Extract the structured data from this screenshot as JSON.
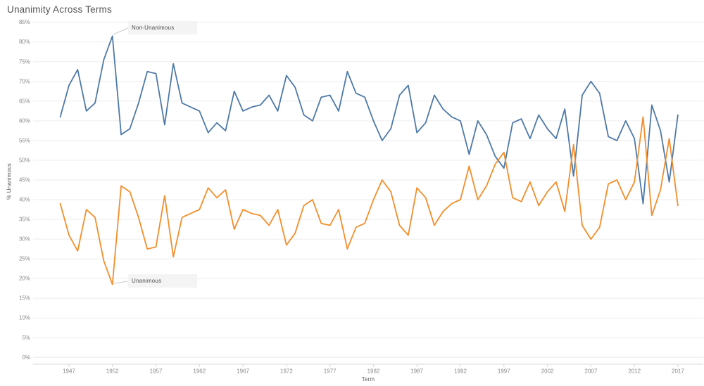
{
  "title": "Unanimity Across Terms",
  "y_axis": {
    "label": "% Unanimous",
    "ticks": [
      "0%",
      "5%",
      "10%",
      "15%",
      "20%",
      "25%",
      "30%",
      "35%",
      "40%",
      "45%",
      "50%",
      "55%",
      "60%",
      "65%",
      "70%",
      "75%",
      "80%",
      "85%"
    ],
    "tick_values": [
      0,
      5,
      10,
      15,
      20,
      25,
      30,
      35,
      40,
      45,
      50,
      55,
      60,
      65,
      70,
      75,
      80,
      85
    ]
  },
  "x_axis": {
    "label": "Term",
    "ticks": [
      "1947",
      "1952",
      "1957",
      "1962",
      "1967",
      "1972",
      "1977",
      "1982",
      "1987",
      "1992",
      "1997",
      "2002",
      "2007",
      "2012",
      "2017"
    ]
  },
  "annotations": [
    {
      "label": "Non-Unanimous",
      "series": "Non-Unanimous",
      "year": 1952,
      "value": 81.5
    },
    {
      "label": "Unanimous",
      "series": "Unanimous",
      "year": 1952,
      "value": 18.5
    }
  ],
  "chart_data": {
    "type": "line",
    "title": "Unanimity Across Terms",
    "xlabel": "Term",
    "ylabel": "% Unanimous",
    "ylim": [
      0,
      85
    ],
    "grid": true,
    "legend": "direct-labels (annotations on chart)",
    "x": [
      1946,
      1947,
      1948,
      1949,
      1950,
      1951,
      1952,
      1953,
      1954,
      1955,
      1956,
      1957,
      1958,
      1959,
      1960,
      1961,
      1962,
      1963,
      1964,
      1965,
      1966,
      1967,
      1968,
      1969,
      1970,
      1971,
      1972,
      1973,
      1974,
      1975,
      1976,
      1977,
      1978,
      1979,
      1980,
      1981,
      1982,
      1983,
      1984,
      1985,
      1986,
      1987,
      1988,
      1989,
      1990,
      1991,
      1992,
      1993,
      1994,
      1995,
      1996,
      1997,
      1998,
      1999,
      2000,
      2001,
      2002,
      2003,
      2004,
      2005,
      2006,
      2007,
      2008,
      2009,
      2010,
      2011,
      2012,
      2013,
      2014,
      2015,
      2016,
      2017
    ],
    "series": [
      {
        "name": "Non-Unanimous",
        "color": "#4e79a7",
        "values": [
          61,
          69,
          73,
          62.5,
          64.5,
          75.5,
          81.5,
          56.5,
          58,
          64.5,
          72.5,
          72,
          59,
          74.5,
          64.5,
          63.5,
          62.5,
          57,
          59.5,
          57.5,
          67.5,
          62.5,
          63.5,
          64,
          66.5,
          62.5,
          71.5,
          68.5,
          61.5,
          60,
          66,
          66.5,
          62.5,
          72.5,
          67,
          66,
          60,
          55,
          58,
          66.5,
          69,
          57,
          59.5,
          66.5,
          63,
          61,
          60,
          51.5,
          60,
          56.5,
          51,
          48,
          59.5,
          60.5,
          55.5,
          61.5,
          58,
          55.5,
          63,
          46,
          66.5,
          70,
          67,
          56,
          55,
          60,
          55.5,
          39,
          64,
          57.5,
          44.5,
          61.5
        ]
      },
      {
        "name": "Unanimous",
        "color": "#f28e2b",
        "values": [
          39,
          31,
          27,
          37.5,
          35.5,
          24.5,
          18.5,
          43.5,
          42,
          35.5,
          27.5,
          28,
          41,
          25.5,
          35.5,
          36.5,
          37.5,
          43,
          40.5,
          42.5,
          32.5,
          37.5,
          36.5,
          36,
          33.5,
          37.5,
          28.5,
          31.5,
          38.5,
          40,
          34,
          33.5,
          37.5,
          27.5,
          33,
          34,
          40,
          45,
          42,
          33.5,
          31,
          43,
          40.5,
          33.5,
          37,
          39,
          40,
          48.5,
          40,
          43.5,
          49,
          52,
          40.5,
          39.5,
          44.5,
          38.5,
          42,
          44.5,
          37,
          54,
          33.5,
          30,
          33,
          44,
          45,
          40,
          44.5,
          61,
          36,
          42.5,
          55.5,
          38.5
        ]
      }
    ]
  }
}
